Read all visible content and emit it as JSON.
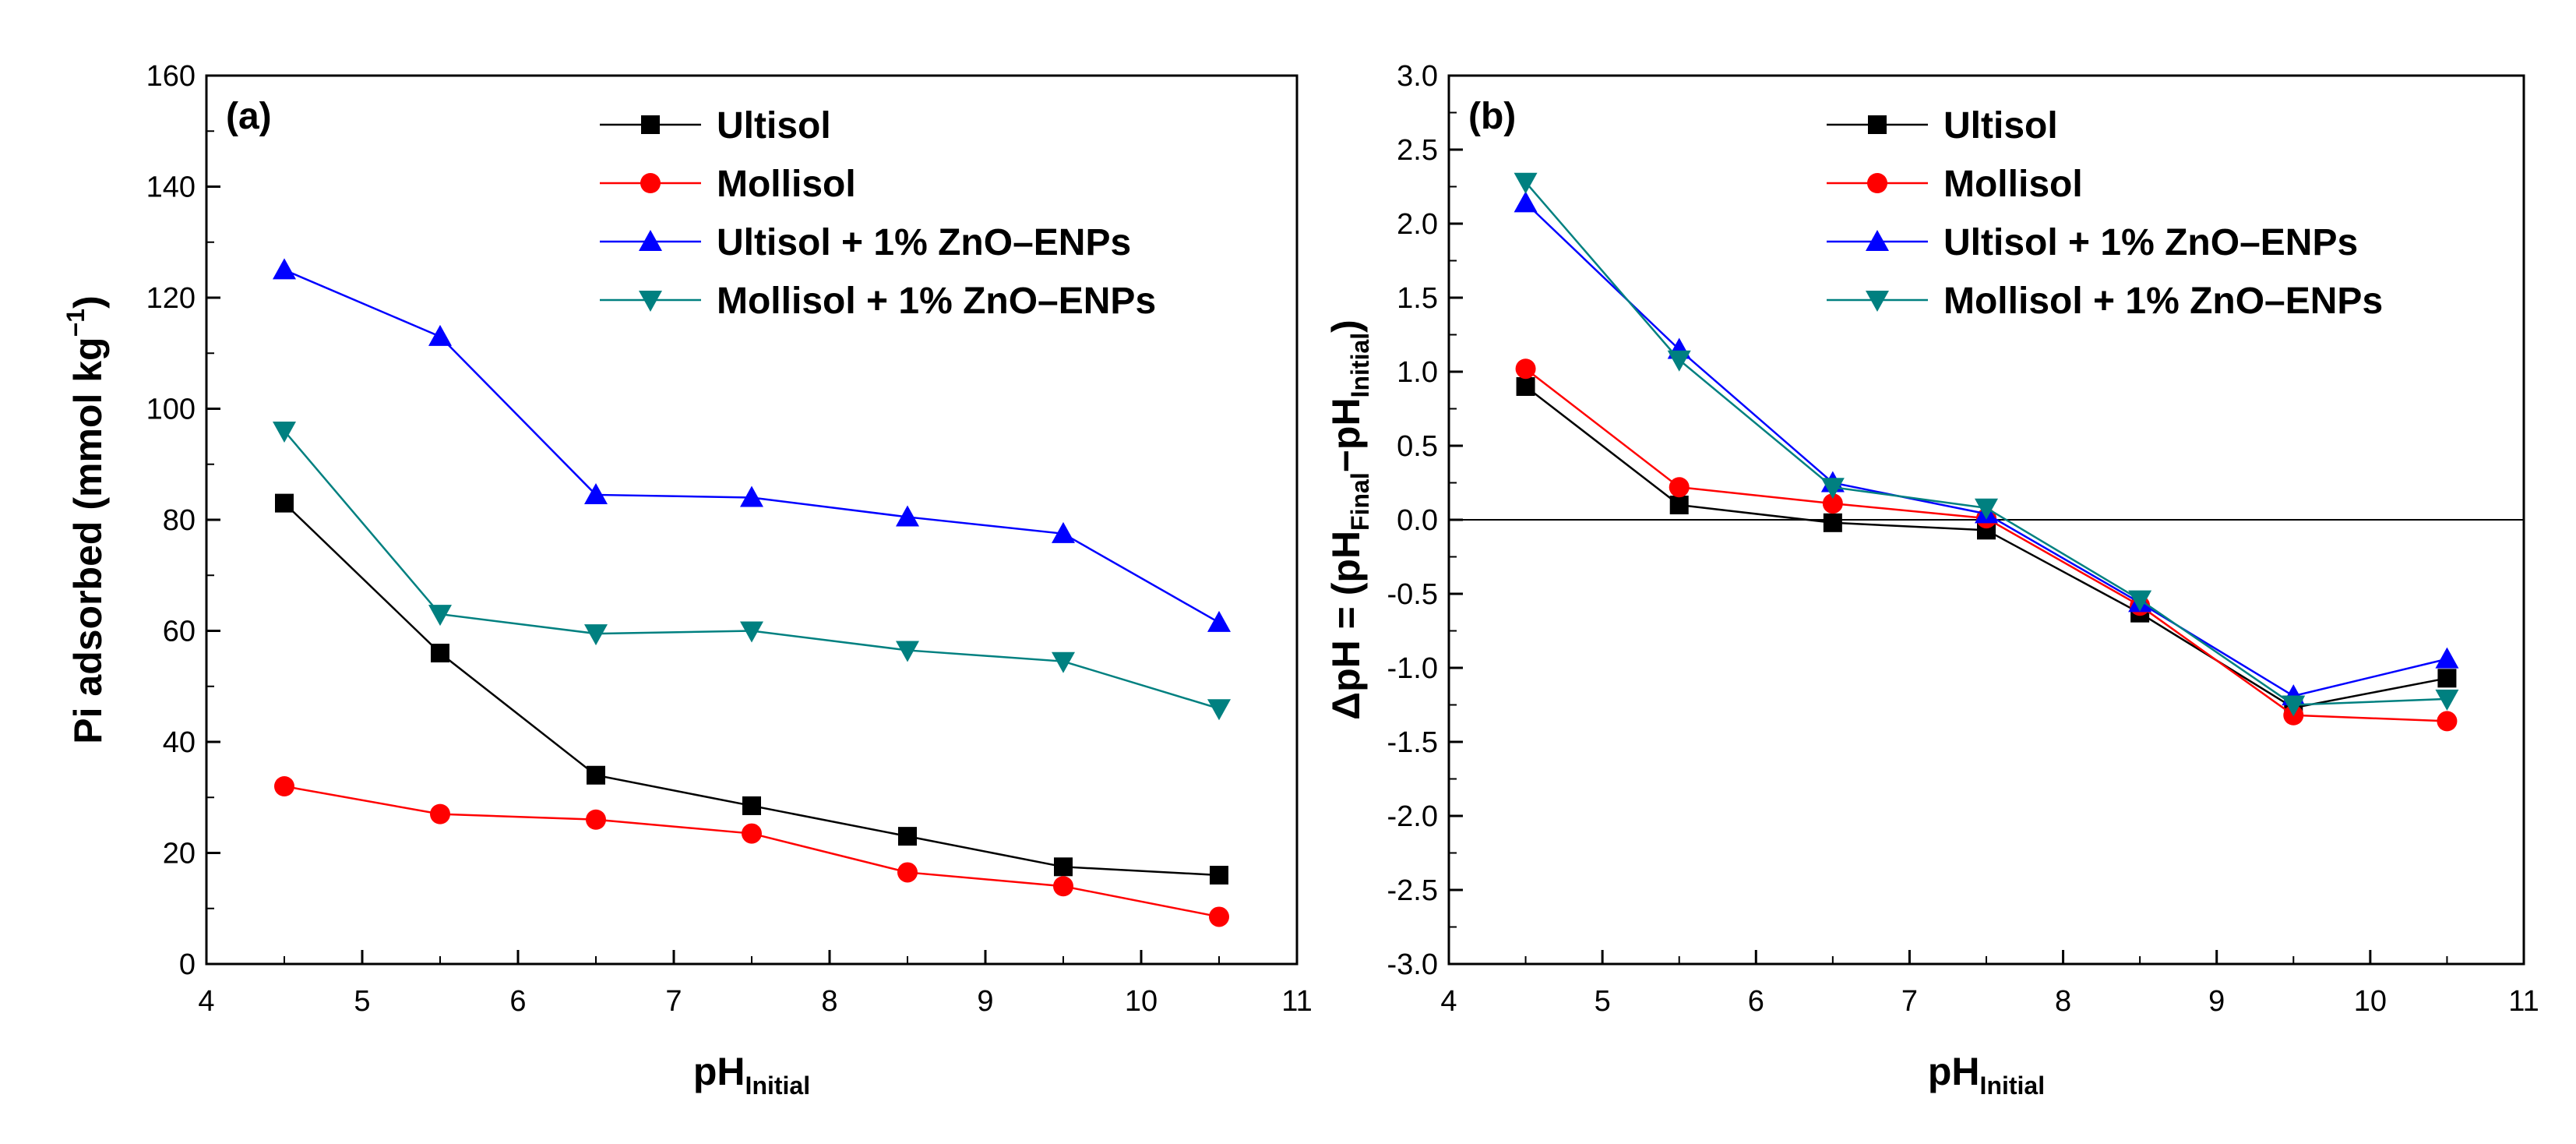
{
  "chart_data": [
    {
      "type": "line",
      "panel_label": "(a)",
      "xlabel": "pH",
      "xlabel_sub": "Initial",
      "ylabel": "Pi adsorbed (mmol kg",
      "ylabel_sup": "−1",
      "ylabel_end": ")",
      "xlim": [
        4,
        11
      ],
      "ylim": [
        0,
        160
      ],
      "x_ticks": [
        "4",
        "5",
        "6",
        "7",
        "8",
        "9",
        "10",
        "11"
      ],
      "y_ticks": [
        "0",
        "20",
        "40",
        "60",
        "80",
        "100",
        "120",
        "140",
        "160"
      ],
      "legend_position": "top-right",
      "x": [
        4.5,
        5.5,
        6.5,
        7.5,
        8.5,
        9.5,
        10.5
      ],
      "series": [
        {
          "name": "Ultisol",
          "color": "#000000",
          "marker": "square",
          "values": [
            83,
            56,
            34,
            28.5,
            23,
            17.5,
            16
          ]
        },
        {
          "name": "Mollisol",
          "color": "#ff0000",
          "marker": "circle",
          "values": [
            32,
            27,
            26,
            23.5,
            16.5,
            14,
            8.5
          ]
        },
        {
          "name": "Ultisol + 1% ZnO–ENPs",
          "color": "#0000ff",
          "marker": "triangle-up",
          "values": [
            125,
            113,
            84.5,
            84,
            80.5,
            77.5,
            61.5
          ]
        },
        {
          "name": "Mollisol + 1% ZnO–ENPs",
          "color": "#008080",
          "marker": "triangle-down",
          "values": [
            96,
            63,
            59.5,
            60,
            56.5,
            54.5,
            46
          ]
        }
      ]
    },
    {
      "type": "line",
      "panel_label": "(b)",
      "xlabel": "pH",
      "xlabel_sub": "Initial",
      "ylabel_parts": [
        "ΔpH = (pH",
        "Final",
        "−pH",
        "Initial",
        ")"
      ],
      "xlim": [
        4,
        11
      ],
      "ylim": [
        -3,
        3
      ],
      "x_ticks": [
        "4",
        "5",
        "6",
        "7",
        "8",
        "9",
        "10",
        "11"
      ],
      "y_ticks": [
        "-3.0",
        "-2.5",
        "-2.0",
        "-1.5",
        "-1.0",
        "-0.5",
        "0.0",
        "0.5",
        "1.0",
        "1.5",
        "2.0",
        "2.5",
        "3.0"
      ],
      "reference_line_y": 0,
      "legend_position": "top-right",
      "x": [
        4.5,
        5.5,
        6.5,
        7.5,
        8.5,
        9.5,
        10.5
      ],
      "series": [
        {
          "name": "Ultisol",
          "color": "#000000",
          "marker": "square",
          "values": [
            0.9,
            0.1,
            -0.02,
            -0.07,
            -0.63,
            -1.27,
            -1.07
          ]
        },
        {
          "name": "Mollisol",
          "color": "#ff0000",
          "marker": "circle",
          "values": [
            1.02,
            0.22,
            0.11,
            0.01,
            -0.58,
            -1.32,
            -1.36
          ]
        },
        {
          "name": "Ultisol + 1% ZnO–ENPs",
          "color": "#0000ff",
          "marker": "triangle-up",
          "values": [
            2.14,
            1.15,
            0.25,
            0.04,
            -0.56,
            -1.19,
            -0.94
          ]
        },
        {
          "name": "Mollisol + 1% ZnO–ENPs",
          "color": "#008080",
          "marker": "triangle-down",
          "values": [
            2.28,
            1.08,
            0.22,
            0.08,
            -0.54,
            -1.25,
            -1.21
          ]
        }
      ]
    }
  ]
}
